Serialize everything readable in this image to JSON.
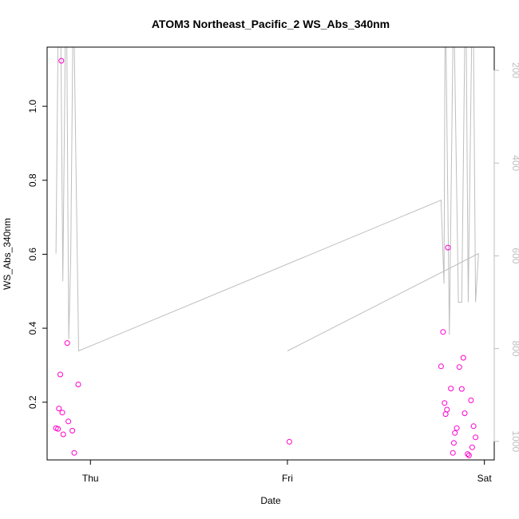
{
  "chart_data": {
    "type": "scatter",
    "title": "ATOM3 Northeast_Pacific_2 WS_Abs_340nm",
    "xlabel": "Date",
    "ylabel": "WS_Abs_340nm",
    "x_ticks": [
      "Thu",
      "Fri",
      "Sat"
    ],
    "x_range_days": [
      -0.22,
      2.05
    ],
    "y_ticks": [
      "0.2",
      "0.4",
      "0.6",
      "0.8",
      "1.0"
    ],
    "y_tick_values": [
      0.2,
      0.4,
      0.6,
      0.8,
      1.0
    ],
    "ylim": [
      0.044,
      1.16
    ],
    "right_axis": {
      "ticks": [
        "200",
        "400",
        "600",
        "800",
        "1000"
      ],
      "tick_values": [
        200,
        400,
        600,
        800,
        1000
      ],
      "range_inverted": [
        1040,
        150
      ],
      "color": "#bebebe"
    },
    "colors": {
      "points": "#ff00cc",
      "line": "#bebebe"
    },
    "series": [
      {
        "marker": "circle-open",
        "color": "#ff00cc",
        "points": [
          {
            "x": -0.175,
            "y": 0.13
          },
          {
            "x": -0.165,
            "y": 0.128
          },
          {
            "x": -0.16,
            "y": 0.183
          },
          {
            "x": -0.153,
            "y": 0.275
          },
          {
            "x": -0.148,
            "y": 1.123
          },
          {
            "x": -0.143,
            "y": 0.172
          },
          {
            "x": -0.138,
            "y": 0.113
          },
          {
            "x": -0.118,
            "y": 0.36
          },
          {
            "x": -0.112,
            "y": 0.148
          },
          {
            "x": -0.092,
            "y": 0.123
          },
          {
            "x": -0.082,
            "y": 0.063
          },
          {
            "x": -0.062,
            "y": 0.248
          },
          {
            "x": 1.01,
            "y": 0.093
          },
          {
            "x": 1.78,
            "y": 0.297
          },
          {
            "x": 1.79,
            "y": 0.39
          },
          {
            "x": 1.798,
            "y": 0.198
          },
          {
            "x": 1.803,
            "y": 0.168
          },
          {
            "x": 1.81,
            "y": 0.18
          },
          {
            "x": 1.815,
            "y": 0.618
          },
          {
            "x": 1.83,
            "y": 0.237
          },
          {
            "x": 1.84,
            "y": 0.063
          },
          {
            "x": 1.845,
            "y": 0.09
          },
          {
            "x": 1.85,
            "y": 0.117
          },
          {
            "x": 1.86,
            "y": 0.13
          },
          {
            "x": 1.873,
            "y": 0.295
          },
          {
            "x": 1.885,
            "y": 0.236
          },
          {
            "x": 1.893,
            "y": 0.32
          },
          {
            "x": 1.9,
            "y": 0.17
          },
          {
            "x": 1.915,
            "y": 0.06
          },
          {
            "x": 1.922,
            "y": 0.056
          },
          {
            "x": 1.932,
            "y": 0.205
          },
          {
            "x": 1.938,
            "y": 0.078
          },
          {
            "x": 1.945,
            "y": 0.135
          },
          {
            "x": 1.955,
            "y": 0.105
          }
        ]
      },
      {
        "axis": "right",
        "style": "line",
        "color": "#bebebe",
        "segments": [
          [
            {
              "x": -0.175,
              "y": 595
            },
            {
              "x": -0.165,
              "y": 150
            },
            {
              "x": -0.15,
              "y": 150
            },
            {
              "x": -0.14,
              "y": 655
            },
            {
              "x": -0.128,
              "y": 150
            },
            {
              "x": -0.12,
              "y": 150
            },
            {
              "x": -0.11,
              "y": 780
            },
            {
              "x": -0.1,
              "y": 600
            },
            {
              "x": -0.09,
              "y": 150
            },
            {
              "x": -0.082,
              "y": 150
            },
            {
              "x": -0.06,
              "y": 805
            },
            {
              "x": 1.78,
              "y": 480
            },
            {
              "x": 1.795,
              "y": 660
            },
            {
              "x": 1.8,
              "y": 150
            },
            {
              "x": 1.805,
              "y": 150
            },
            {
              "x": 1.822,
              "y": 770
            },
            {
              "x": 1.84,
              "y": 150
            },
            {
              "x": 1.848,
              "y": 150
            },
            {
              "x": 1.868,
              "y": 700
            },
            {
              "x": 1.885,
              "y": 700
            },
            {
              "x": 1.9,
              "y": 150
            },
            {
              "x": 1.908,
              "y": 150
            },
            {
              "x": 1.918,
              "y": 700
            },
            {
              "x": 1.935,
              "y": 150
            },
            {
              "x": 1.945,
              "y": 150
            },
            {
              "x": 1.955,
              "y": 700
            },
            {
              "x": 1.97,
              "y": 595
            }
          ],
          [
            {
              "x": 1.0,
              "y": 805
            },
            {
              "x": 1.97,
              "y": 595
            }
          ]
        ]
      }
    ]
  }
}
